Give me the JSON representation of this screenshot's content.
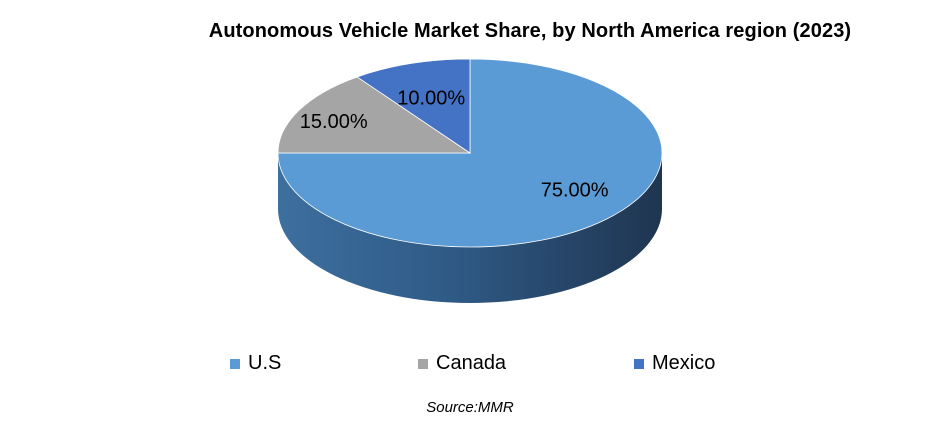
{
  "chart_data": {
    "type": "pie",
    "title": "Autonomous Vehicle Market Share, by  North America region (2023)",
    "categories": [
      "U.S",
      "Canada",
      "Mexico"
    ],
    "values": [
      75.0,
      15.0,
      10.0
    ],
    "data_labels": [
      "75.00%",
      "15.00%",
      "10.00%"
    ],
    "colors": [
      "#5B9BD5",
      "#A5A5A5",
      "#4472C4"
    ],
    "style": "3d",
    "legend_position": "bottom"
  },
  "legend": [
    "U.S",
    "Canada",
    "Mexico"
  ],
  "source": "Source:MMR"
}
